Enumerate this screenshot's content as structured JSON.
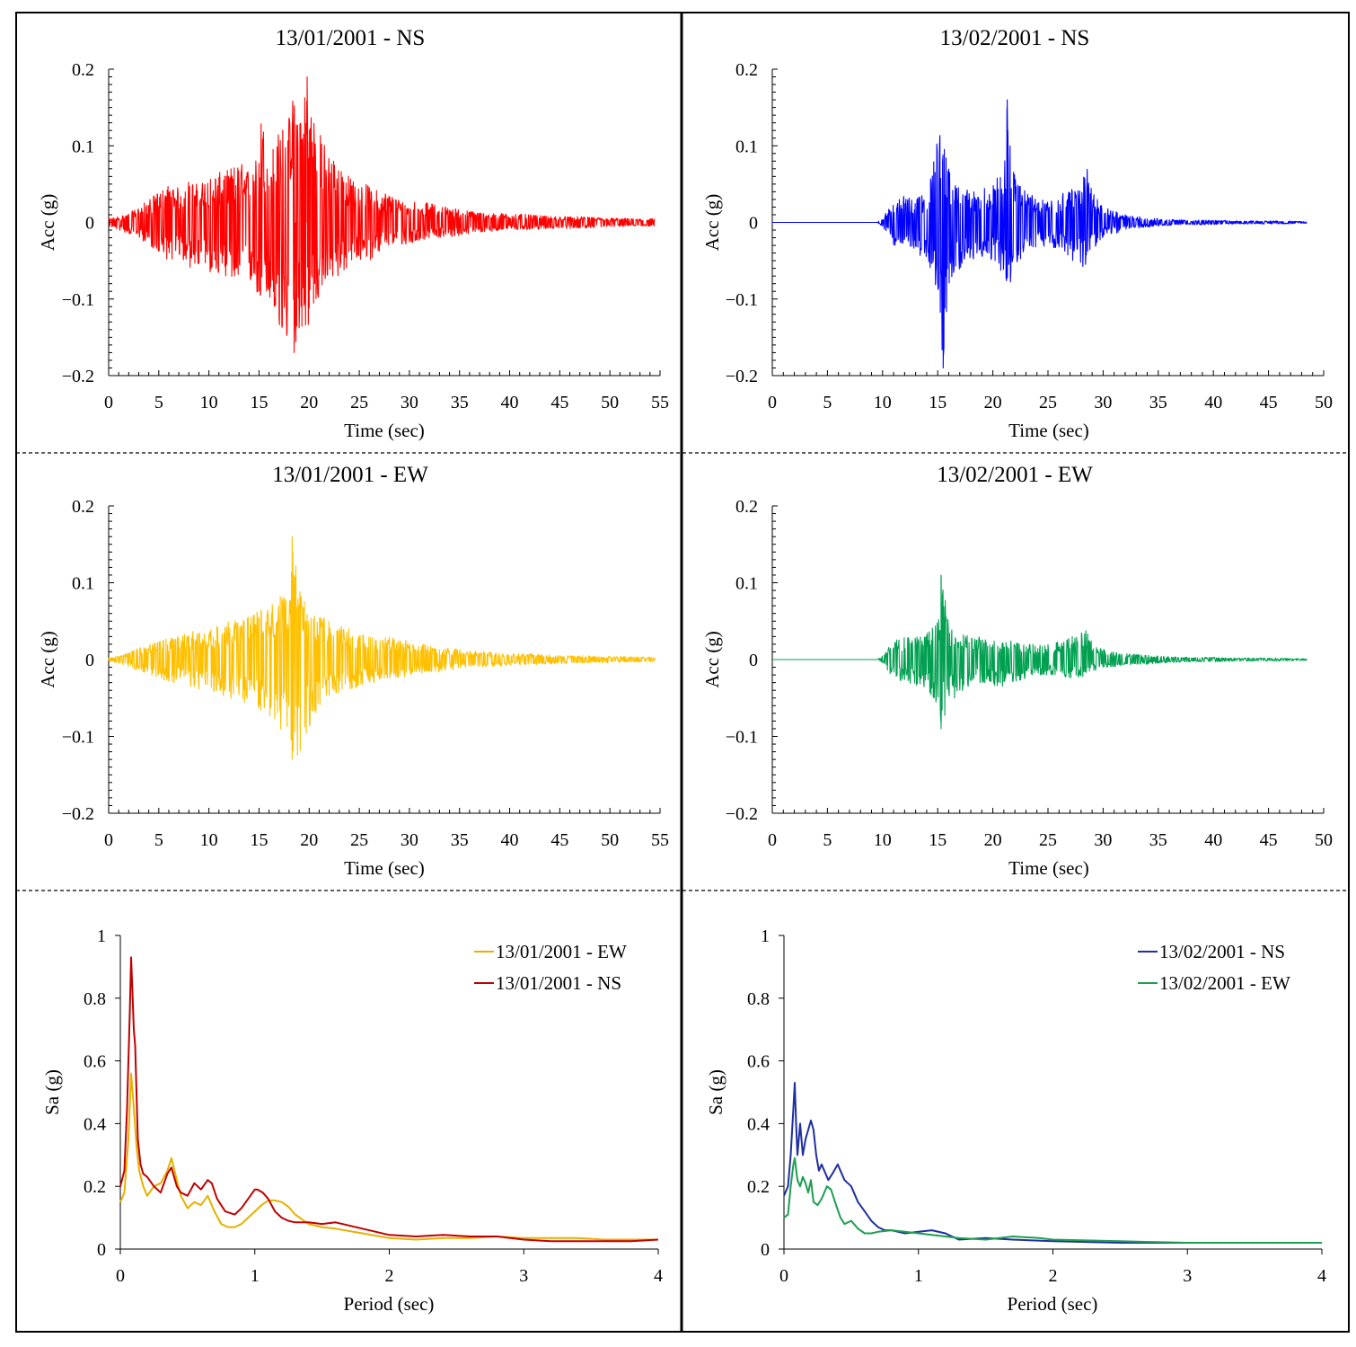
{
  "chart_data": [
    {
      "id": "p1",
      "type": "line",
      "title": "13/01/2001 - NS",
      "xlabel": "Time (sec)",
      "ylabel": "Acc (g)",
      "xlim": [
        0,
        55
      ],
      "ylim": [
        -0.2,
        0.2
      ],
      "xticks": [
        "0",
        "5",
        "10",
        "15",
        "20",
        "25",
        "30",
        "35",
        "40",
        "45",
        "50",
        "55"
      ],
      "yticks": [
        "0.2",
        "0.1",
        "0",
        "−0.1",
        "−0.2"
      ],
      "grid": false,
      "series": [
        {
          "color": "#ff0000",
          "x": [
            0,
            1,
            2,
            3,
            4,
            5,
            6,
            7,
            8,
            9,
            10,
            11,
            12,
            13,
            14,
            15,
            15.1,
            16,
            17,
            18,
            18.5,
            19,
            19.8,
            20,
            21,
            22,
            23,
            24,
            25,
            26,
            27,
            28,
            29,
            30,
            32,
            34,
            36,
            38,
            40,
            42,
            44,
            46,
            48,
            50,
            52,
            54.5
          ],
          "y_upper": [
            0.005,
            0.008,
            0.012,
            0.02,
            0.03,
            0.04,
            0.05,
            0.045,
            0.055,
            0.05,
            0.06,
            0.065,
            0.07,
            0.08,
            0.07,
            0.09,
            0.15,
            0.09,
            0.12,
            0.14,
            0.175,
            0.16,
            0.19,
            0.17,
            0.12,
            0.09,
            0.08,
            0.06,
            0.05,
            0.05,
            0.04,
            0.04,
            0.03,
            0.03,
            0.025,
            0.02,
            0.015,
            0.012,
            0.012,
            0.01,
            0.008,
            0.008,
            0.007,
            0.006,
            0.005,
            0.005
          ],
          "y_lower": [
            -0.005,
            -0.01,
            -0.015,
            -0.02,
            -0.03,
            -0.04,
            -0.05,
            -0.045,
            -0.06,
            -0.06,
            -0.065,
            -0.07,
            -0.07,
            -0.09,
            -0.08,
            -0.1,
            -0.13,
            -0.1,
            -0.16,
            -0.16,
            -0.17,
            -0.14,
            -0.15,
            -0.13,
            -0.1,
            -0.08,
            -0.07,
            -0.06,
            -0.05,
            -0.05,
            -0.04,
            -0.03,
            -0.03,
            -0.03,
            -0.02,
            -0.02,
            -0.015,
            -0.012,
            -0.01,
            -0.01,
            -0.008,
            -0.008,
            -0.007,
            -0.006,
            -0.005,
            -0.005
          ]
        }
      ]
    },
    {
      "id": "p2",
      "type": "line",
      "title": "13/02/2001 - NS",
      "xlabel": "Time (sec)",
      "ylabel": "Acc (g)",
      "xlim": [
        0,
        50
      ],
      "ylim": [
        -0.2,
        0.2
      ],
      "xticks": [
        "0",
        "5",
        "10",
        "15",
        "20",
        "25",
        "30",
        "35",
        "40",
        "45",
        "50"
      ],
      "yticks": [
        "0.2",
        "0.1",
        "0",
        "−0.1",
        "−0.2"
      ],
      "grid": false,
      "series": [
        {
          "color": "#0000ff",
          "x": [
            0,
            9.5,
            10,
            11,
            12,
            13,
            14,
            15,
            15.5,
            16,
            17,
            18,
            19,
            20,
            21,
            21.3,
            22,
            23,
            24,
            25,
            26,
            27,
            28,
            28.8,
            29,
            30,
            31,
            32,
            34,
            36,
            38,
            40,
            42,
            44,
            46,
            48.5
          ],
          "y_upper": [
            0,
            0,
            0.005,
            0.03,
            0.035,
            0.03,
            0.04,
            0.12,
            0.11,
            0.07,
            0.05,
            0.04,
            0.045,
            0.05,
            0.07,
            0.16,
            0.06,
            0.04,
            0.035,
            0.03,
            0.035,
            0.045,
            0.05,
            0.08,
            0.04,
            0.02,
            0.015,
            0.01,
            0.006,
            0.004,
            0.003,
            0.003,
            0.002,
            0.002,
            0.002,
            0.001
          ],
          "y_lower": [
            0,
            0,
            -0.005,
            -0.03,
            -0.03,
            -0.04,
            -0.05,
            -0.09,
            -0.19,
            -0.08,
            -0.06,
            -0.05,
            -0.045,
            -0.05,
            -0.07,
            -0.09,
            -0.07,
            -0.04,
            -0.035,
            -0.03,
            -0.04,
            -0.05,
            -0.06,
            -0.06,
            -0.04,
            -0.02,
            -0.015,
            -0.01,
            -0.006,
            -0.004,
            -0.003,
            -0.003,
            -0.002,
            -0.002,
            -0.002,
            -0.001
          ]
        }
      ]
    },
    {
      "id": "p3",
      "type": "line",
      "title": "13/01/2001 - EW",
      "xlabel": "Time (sec)",
      "ylabel": "Acc (g)",
      "xlim": [
        0,
        55
      ],
      "ylim": [
        -0.2,
        0.2
      ],
      "xticks": [
        "0",
        "5",
        "10",
        "15",
        "20",
        "25",
        "30",
        "35",
        "40",
        "45",
        "50",
        "55"
      ],
      "yticks": [
        "0.2",
        "0.1",
        "0",
        "−0.1",
        "−0.2"
      ],
      "grid": false,
      "series": [
        {
          "color": "#ffc000",
          "x": [
            0,
            1,
            2,
            3,
            4,
            5,
            6,
            7,
            8,
            9,
            10,
            11,
            12,
            13,
            14,
            15,
            16,
            17,
            18,
            18.3,
            19,
            20,
            21,
            22,
            23,
            24,
            25,
            26,
            27,
            28,
            29,
            30,
            32,
            34,
            36,
            38,
            40,
            42,
            44,
            46,
            48,
            50,
            52,
            54.5
          ],
          "y_upper": [
            0.002,
            0.005,
            0.01,
            0.015,
            0.02,
            0.025,
            0.03,
            0.03,
            0.035,
            0.04,
            0.04,
            0.045,
            0.05,
            0.06,
            0.06,
            0.065,
            0.07,
            0.08,
            0.1,
            0.16,
            0.1,
            0.07,
            0.06,
            0.05,
            0.045,
            0.04,
            0.035,
            0.03,
            0.03,
            0.03,
            0.025,
            0.025,
            0.02,
            0.015,
            0.012,
            0.01,
            0.008,
            0.008,
            0.006,
            0.005,
            0.005,
            0.004,
            0.004,
            0.003
          ],
          "y_lower": [
            -0.002,
            -0.005,
            -0.01,
            -0.015,
            -0.02,
            -0.025,
            -0.03,
            -0.03,
            -0.035,
            -0.04,
            -0.04,
            -0.045,
            -0.05,
            -0.055,
            -0.06,
            -0.065,
            -0.08,
            -0.09,
            -0.12,
            -0.13,
            -0.125,
            -0.09,
            -0.07,
            -0.05,
            -0.045,
            -0.04,
            -0.035,
            -0.03,
            -0.03,
            -0.025,
            -0.025,
            -0.02,
            -0.018,
            -0.014,
            -0.01,
            -0.01,
            -0.008,
            -0.007,
            -0.006,
            -0.005,
            -0.004,
            -0.004,
            -0.003,
            -0.003
          ]
        }
      ]
    },
    {
      "id": "p4",
      "type": "line",
      "title": "13/02/2001 - EW",
      "xlabel": "Time (sec)",
      "ylabel": "Acc (g)",
      "xlim": [
        0,
        50
      ],
      "ylim": [
        -0.2,
        0.2
      ],
      "xticks": [
        "0",
        "5",
        "10",
        "15",
        "20",
        "25",
        "30",
        "35",
        "40",
        "45",
        "50"
      ],
      "yticks": [
        "0.2",
        "0.1",
        "0",
        "−0.1",
        "−0.2"
      ],
      "grid": false,
      "series": [
        {
          "color": "#00a050",
          "x": [
            0,
            9.5,
            10,
            11,
            12,
            13,
            14,
            15,
            15.3,
            16,
            17,
            18,
            19,
            20,
            21,
            22,
            23,
            24,
            25,
            26,
            27,
            28,
            28.5,
            29,
            30,
            31,
            32,
            34,
            36,
            38,
            40,
            42,
            44,
            46,
            48.5
          ],
          "y_upper": [
            0,
            0,
            0.005,
            0.025,
            0.03,
            0.03,
            0.035,
            0.05,
            0.11,
            0.05,
            0.035,
            0.03,
            0.03,
            0.025,
            0.025,
            0.025,
            0.02,
            0.02,
            0.02,
            0.025,
            0.03,
            0.035,
            0.04,
            0.025,
            0.015,
            0.01,
            0.008,
            0.006,
            0.004,
            0.003,
            0.003,
            0.002,
            0.002,
            0.002,
            0.001
          ],
          "y_lower": [
            0,
            0,
            -0.005,
            -0.025,
            -0.03,
            -0.035,
            -0.04,
            -0.06,
            -0.09,
            -0.06,
            -0.045,
            -0.035,
            -0.03,
            -0.035,
            -0.04,
            -0.03,
            -0.025,
            -0.02,
            -0.02,
            -0.02,
            -0.025,
            -0.025,
            -0.02,
            -0.015,
            -0.012,
            -0.01,
            -0.008,
            -0.006,
            -0.004,
            -0.003,
            -0.003,
            -0.002,
            -0.002,
            -0.002,
            -0.001
          ]
        }
      ]
    },
    {
      "id": "p5",
      "type": "line",
      "title": "",
      "xlabel": "Period (sec)",
      "ylabel": "Sa (g)",
      "xlim": [
        0,
        4
      ],
      "ylim": [
        0,
        1
      ],
      "xticks": [
        "0",
        "1",
        "2",
        "3",
        "4"
      ],
      "yticks": [
        "1",
        "0.8",
        "0.6",
        "0.4",
        "0.2",
        "0"
      ],
      "grid": false,
      "legend_position": "top-right",
      "series": [
        {
          "name": "13/01/2001 - EW",
          "color": "#e6b000",
          "x": [
            0,
            0.03,
            0.06,
            0.08,
            0.1,
            0.12,
            0.14,
            0.17,
            0.2,
            0.25,
            0.3,
            0.35,
            0.38,
            0.42,
            0.45,
            0.5,
            0.55,
            0.6,
            0.65,
            0.7,
            0.75,
            0.8,
            0.85,
            0.9,
            0.95,
            1.0,
            1.05,
            1.1,
            1.15,
            1.2,
            1.25,
            1.3,
            1.4,
            1.5,
            1.6,
            1.8,
            2.0,
            2.2,
            2.4,
            2.6,
            2.8,
            3.0,
            3.2,
            3.4,
            3.6,
            3.8,
            4.0
          ],
          "y": [
            0.15,
            0.18,
            0.35,
            0.56,
            0.45,
            0.33,
            0.25,
            0.2,
            0.17,
            0.2,
            0.21,
            0.25,
            0.29,
            0.22,
            0.17,
            0.13,
            0.15,
            0.14,
            0.17,
            0.12,
            0.08,
            0.07,
            0.07,
            0.08,
            0.1,
            0.12,
            0.14,
            0.155,
            0.155,
            0.15,
            0.135,
            0.11,
            0.08,
            0.07,
            0.065,
            0.05,
            0.035,
            0.03,
            0.035,
            0.035,
            0.04,
            0.035,
            0.035,
            0.035,
            0.03,
            0.03,
            0.03
          ]
        },
        {
          "name": "13/01/2001 - NS",
          "color": "#c00000",
          "x": [
            0,
            0.03,
            0.05,
            0.07,
            0.08,
            0.09,
            0.1,
            0.11,
            0.12,
            0.13,
            0.15,
            0.17,
            0.2,
            0.25,
            0.3,
            0.35,
            0.38,
            0.42,
            0.45,
            0.5,
            0.55,
            0.6,
            0.65,
            0.68,
            0.72,
            0.78,
            0.85,
            0.9,
            0.95,
            1.0,
            1.02,
            1.06,
            1.1,
            1.15,
            1.2,
            1.25,
            1.3,
            1.4,
            1.5,
            1.6,
            1.8,
            2.0,
            2.2,
            2.4,
            2.6,
            2.8,
            3.0,
            3.2,
            3.4,
            3.6,
            3.8,
            4.0
          ],
          "y": [
            0.2,
            0.25,
            0.45,
            0.75,
            0.93,
            0.82,
            0.7,
            0.65,
            0.5,
            0.35,
            0.27,
            0.24,
            0.23,
            0.2,
            0.18,
            0.24,
            0.26,
            0.2,
            0.18,
            0.17,
            0.21,
            0.19,
            0.22,
            0.21,
            0.16,
            0.12,
            0.11,
            0.13,
            0.16,
            0.19,
            0.19,
            0.18,
            0.16,
            0.12,
            0.1,
            0.09,
            0.085,
            0.085,
            0.08,
            0.085,
            0.065,
            0.045,
            0.04,
            0.045,
            0.04,
            0.04,
            0.03,
            0.025,
            0.025,
            0.025,
            0.025,
            0.03
          ]
        }
      ]
    },
    {
      "id": "p6",
      "type": "line",
      "title": "",
      "xlabel": "Period (sec)",
      "ylabel": "Sa (g)",
      "xlim": [
        0,
        4
      ],
      "ylim": [
        0,
        1
      ],
      "xticks": [
        "0",
        "1",
        "2",
        "3",
        "4"
      ],
      "yticks": [
        "1",
        "0.8",
        "0.6",
        "0.4",
        "0.2",
        "0"
      ],
      "grid": false,
      "legend_position": "top-right",
      "series": [
        {
          "name": "13/02/2001 - NS",
          "color": "#1f2fa0",
          "x": [
            0,
            0.03,
            0.05,
            0.07,
            0.08,
            0.09,
            0.1,
            0.12,
            0.14,
            0.16,
            0.18,
            0.2,
            0.22,
            0.24,
            0.26,
            0.28,
            0.3,
            0.33,
            0.36,
            0.4,
            0.42,
            0.45,
            0.5,
            0.55,
            0.6,
            0.65,
            0.7,
            0.75,
            0.8,
            0.9,
            1.0,
            1.1,
            1.2,
            1.3,
            1.5,
            1.7,
            2.0,
            2.5,
            3.0,
            3.5,
            4.0
          ],
          "y": [
            0.17,
            0.2,
            0.3,
            0.45,
            0.53,
            0.4,
            0.3,
            0.4,
            0.3,
            0.35,
            0.38,
            0.41,
            0.38,
            0.3,
            0.25,
            0.27,
            0.25,
            0.22,
            0.24,
            0.27,
            0.25,
            0.22,
            0.2,
            0.15,
            0.12,
            0.09,
            0.07,
            0.06,
            0.06,
            0.05,
            0.055,
            0.06,
            0.05,
            0.03,
            0.035,
            0.03,
            0.025,
            0.02,
            0.02,
            0.02,
            0.02
          ]
        },
        {
          "name": "13/02/2001 - EW",
          "color": "#1e9e50",
          "x": [
            0,
            0.03,
            0.05,
            0.07,
            0.08,
            0.1,
            0.12,
            0.14,
            0.16,
            0.18,
            0.2,
            0.22,
            0.25,
            0.28,
            0.32,
            0.35,
            0.38,
            0.42,
            0.45,
            0.5,
            0.55,
            0.6,
            0.65,
            0.7,
            0.8,
            0.9,
            1.0,
            1.1,
            1.2,
            1.3,
            1.5,
            1.7,
            1.9,
            2.0,
            2.5,
            3.0,
            3.5,
            4.0
          ],
          "y": [
            0.1,
            0.11,
            0.2,
            0.27,
            0.29,
            0.22,
            0.2,
            0.23,
            0.21,
            0.18,
            0.22,
            0.15,
            0.14,
            0.16,
            0.2,
            0.19,
            0.15,
            0.1,
            0.08,
            0.09,
            0.065,
            0.05,
            0.05,
            0.055,
            0.06,
            0.055,
            0.05,
            0.045,
            0.04,
            0.035,
            0.03,
            0.04,
            0.035,
            0.03,
            0.025,
            0.02,
            0.02,
            0.02
          ]
        }
      ]
    }
  ]
}
